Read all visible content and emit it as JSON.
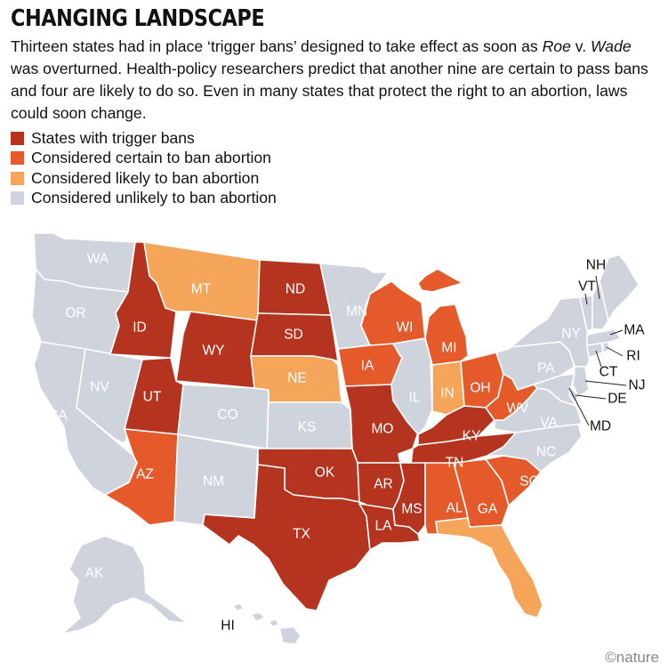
{
  "header": {
    "title": "CHANGING LANDSCAPE",
    "subtitle_pre": "Thirteen states had in place ‘trigger bans’ designed to take effect as soon as ",
    "subtitle_case1": "Roe",
    "subtitle_v": " v. ",
    "subtitle_case2": "Wade",
    "subtitle_post": " was overturned. Health-policy researchers predict that another nine are certain to pass bans and four are likely to do so. Even in many states that protect the right to an abortion, laws could soon change."
  },
  "colors": {
    "trigger": "#b5341f",
    "certain": "#e45a2b",
    "likely": "#f4a55a",
    "unlikely": "#cfd3dc"
  },
  "legend": [
    {
      "key": "trigger",
      "label": "States with trigger bans"
    },
    {
      "key": "certain",
      "label": "Considered certain to ban abortion"
    },
    {
      "key": "likely",
      "label": "Considered likely to ban abortion"
    },
    {
      "key": "unlikely",
      "label": "Considered unlikely to ban abortion"
    }
  ],
  "states": {
    "WA": "unlikely",
    "OR": "unlikely",
    "CA": "unlikely",
    "NV": "unlikely",
    "ID": "trigger",
    "MT": "likely",
    "WY": "trigger",
    "UT": "trigger",
    "AZ": "certain",
    "CO": "unlikely",
    "NM": "unlikely",
    "ND": "trigger",
    "SD": "trigger",
    "NE": "likely",
    "KS": "unlikely",
    "OK": "trigger",
    "TX": "trigger",
    "MN": "unlikely",
    "IA": "certain",
    "MO": "trigger",
    "AR": "trigger",
    "LA": "trigger",
    "WI": "certain",
    "IL": "unlikely",
    "MI": "certain",
    "IN": "likely",
    "OH": "certain",
    "KY": "trigger",
    "TN": "trigger",
    "MS": "trigger",
    "AL": "certain",
    "GA": "certain",
    "FL": "likely",
    "SC": "certain",
    "NC": "unlikely",
    "VA": "unlikely",
    "WV": "certain",
    "PA": "unlikely",
    "NY": "unlikely",
    "NJ": "unlikely",
    "DE": "unlikely",
    "MD": "unlikely",
    "CT": "unlikely",
    "RI": "unlikely",
    "MA": "unlikely",
    "VT": "unlikely",
    "NH": "unlikely",
    "ME": "unlikely",
    "AK": "unlikely",
    "HI": "unlikely"
  },
  "credit": "©nature"
}
